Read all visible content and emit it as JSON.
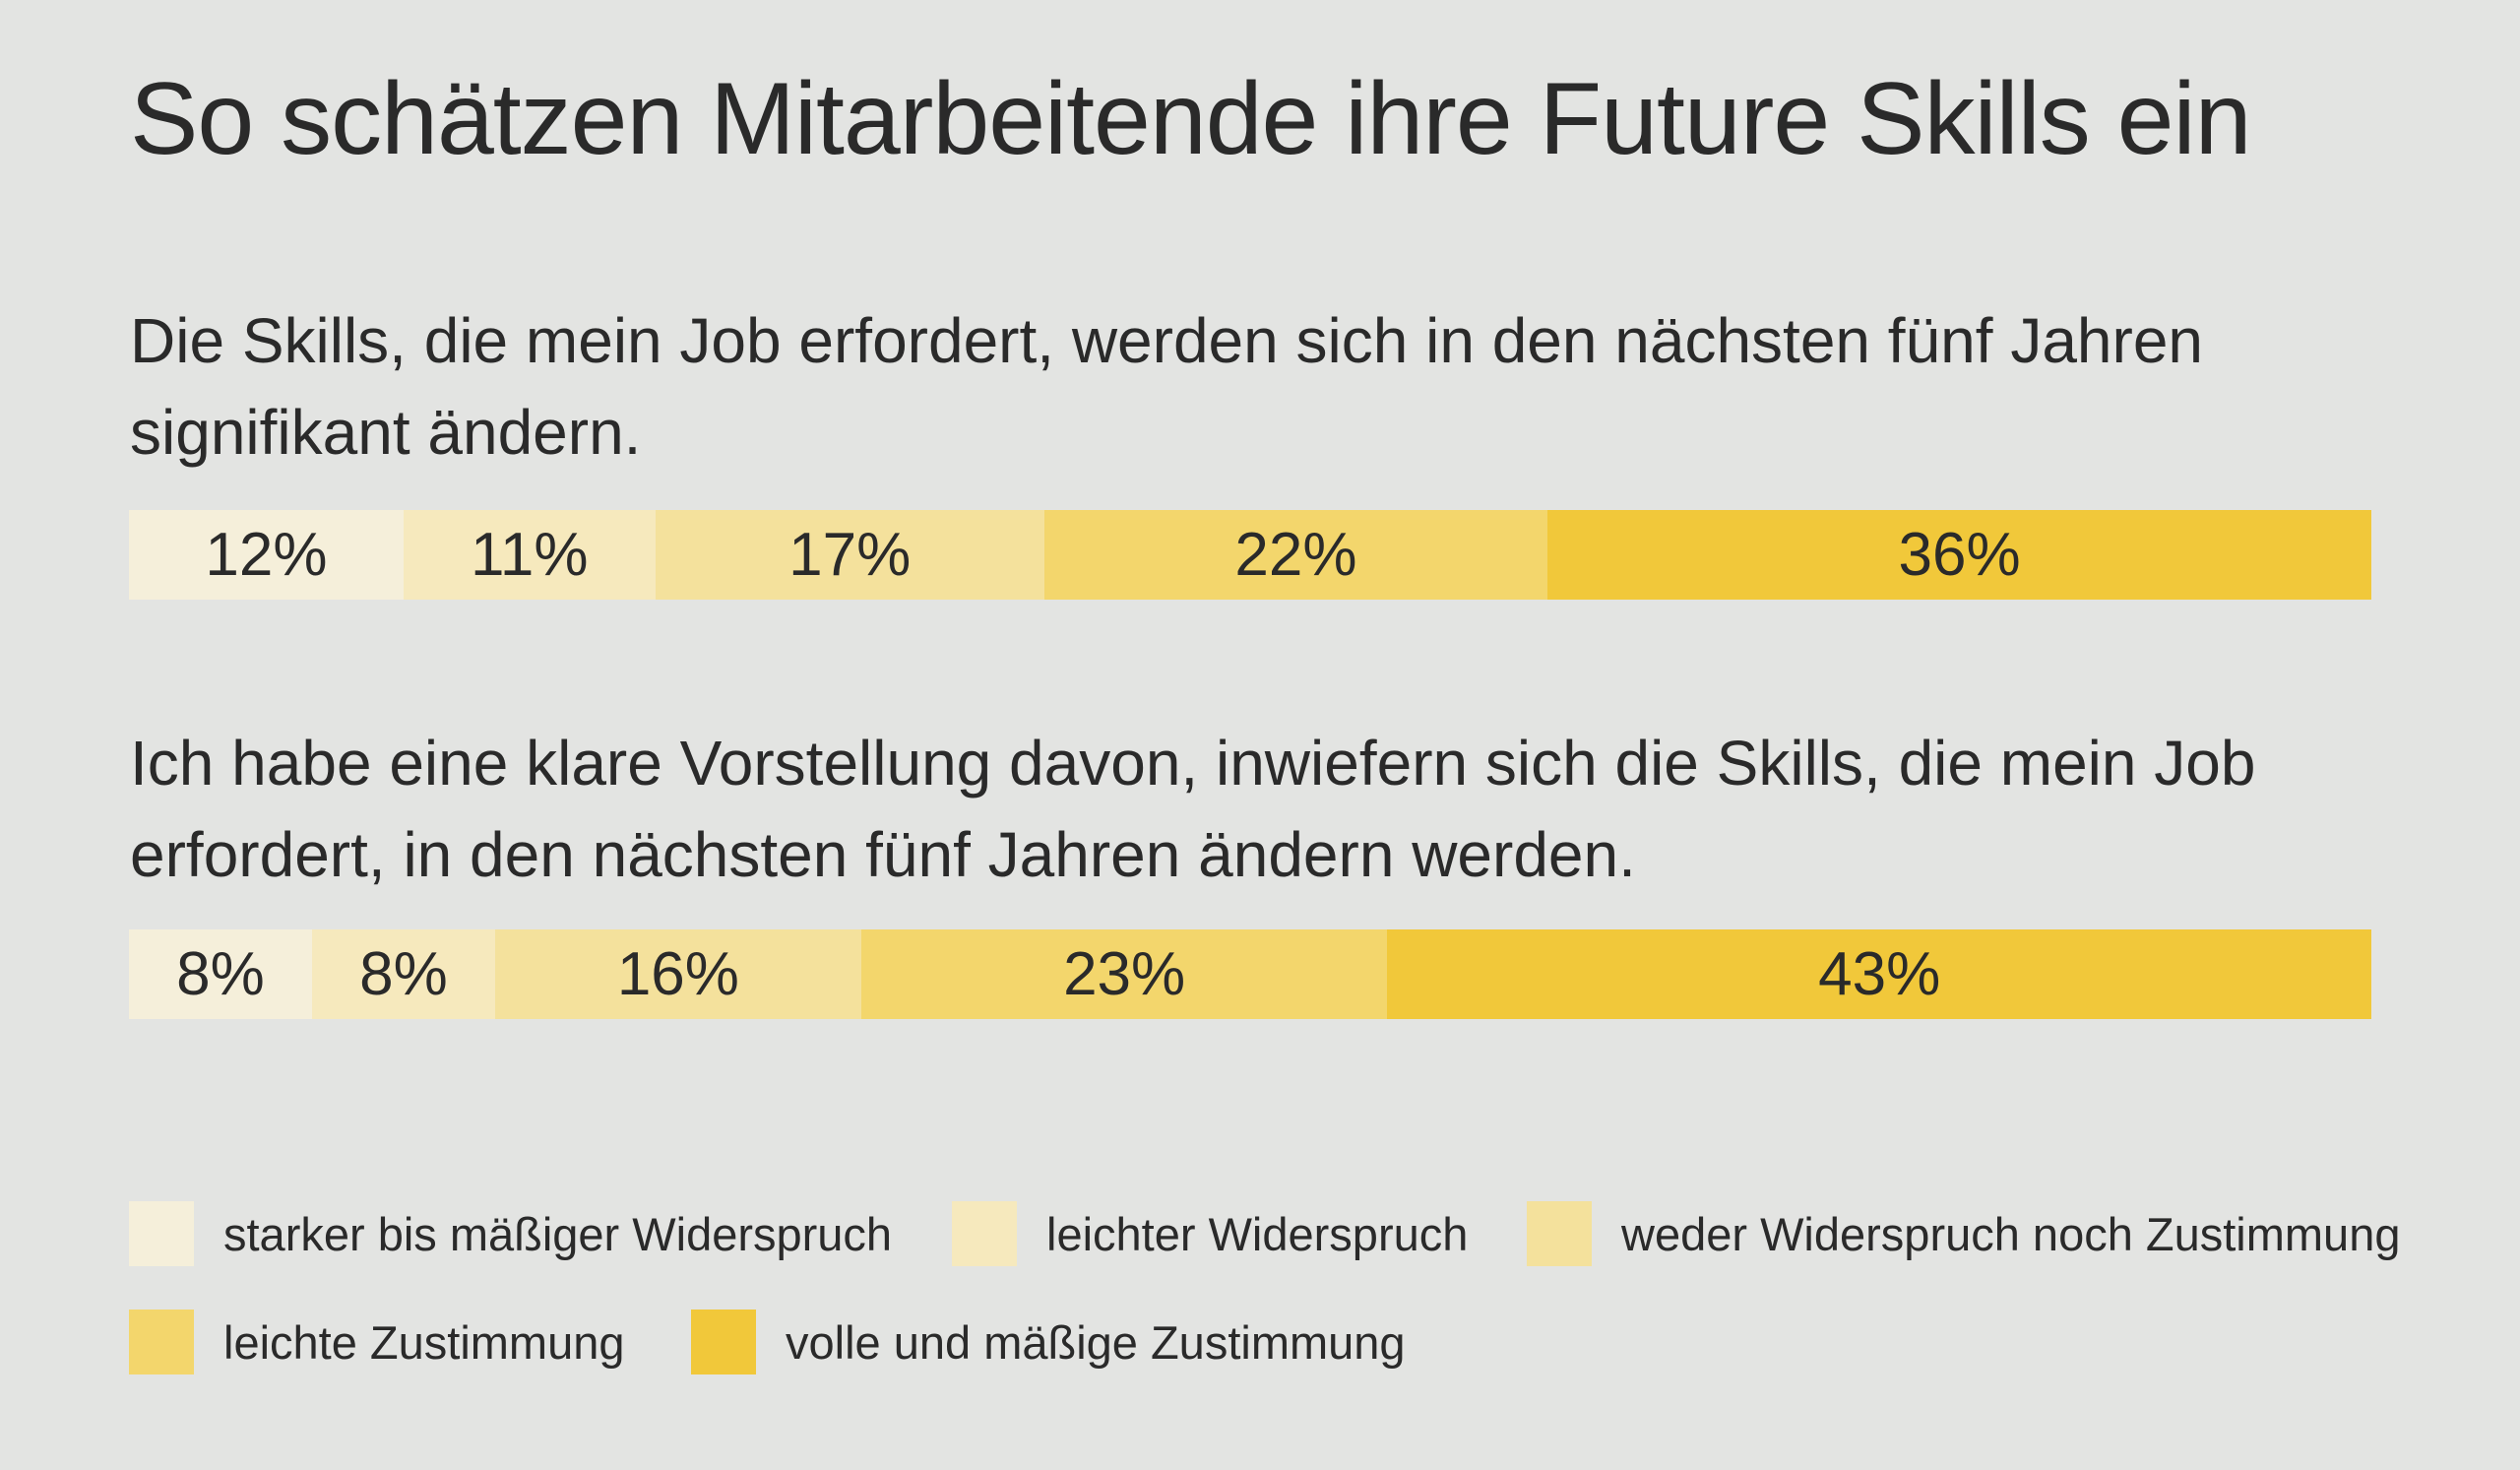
{
  "chart_data": {
    "type": "stacked-bar-100",
    "title": "So schätzen Mitarbeitende ihre Future Skills ein",
    "categories": [
      "Die Skills, die mein Job erfordert, werden sich in den nächsten fünf Jahren signifikant ändern.",
      "Ich habe eine klare Vorstellung davon, inwiefern sich die Skills, die mein Job erfordert, in den nächsten fünf Jahren ändern werden."
    ],
    "series": [
      {
        "name": "starker bis mäßiger Widerspruch",
        "color": "#f5efda",
        "values": [
          12,
          8
        ],
        "value_labels": [
          "12%",
          "8%"
        ]
      },
      {
        "name": "leichter Widerspruch",
        "color": "#f6e9bd",
        "values": [
          11,
          8
        ],
        "value_labels": [
          "11%",
          "8%"
        ]
      },
      {
        "name": "weder Widerspruch noch Zustimmung",
        "color": "#f4e19c",
        "values": [
          17,
          16
        ],
        "value_labels": [
          "17%",
          "16%"
        ]
      },
      {
        "name": "leichte Zustimmung",
        "color": "#f3d66c",
        "values": [
          22,
          23
        ],
        "value_labels": [
          "22%",
          "23%"
        ]
      },
      {
        "name": "volle und mäßige Zustimmung",
        "color": "#f1c83a",
        "values": [
          36,
          43
        ],
        "value_labels": [
          "36%",
          "43%"
        ]
      }
    ]
  }
}
